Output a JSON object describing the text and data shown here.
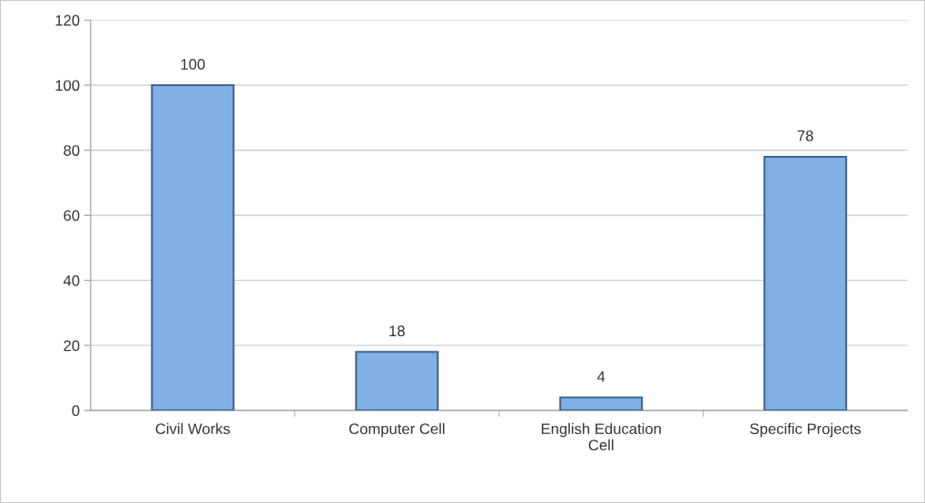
{
  "chart_data": {
    "type": "bar",
    "categories": [
      "Civil Works",
      "Computer Cell",
      "English Education\nCell",
      "Specific Projects"
    ],
    "values": [
      100,
      18,
      4,
      78
    ],
    "color": "#80b0e4",
    "ylim": [
      0,
      120
    ],
    "yticks": [
      0,
      20,
      40,
      60,
      80,
      100,
      120
    ],
    "grid": "y",
    "data_labels": true
  }
}
